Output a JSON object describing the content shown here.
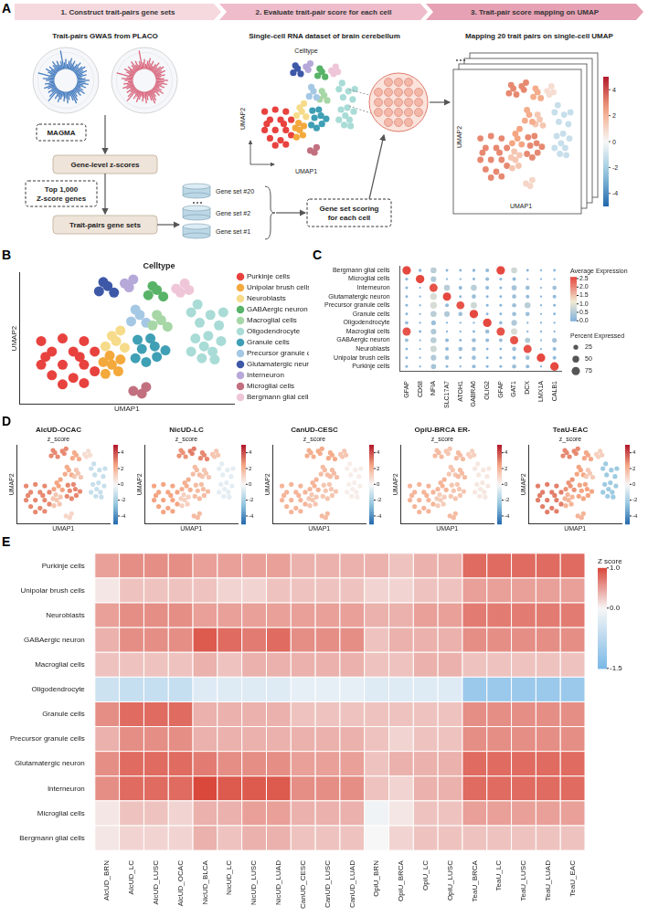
{
  "diagram": {
    "panel_letter": "A",
    "steps": [
      "1. Construct trait-pairs gene sets",
      "2. Evaluate trait-pair score for each cell",
      "3. Trait-pair score mapping on UMAP"
    ],
    "gwas_title": "Trait-pairs GWAS from PLACO",
    "method": "MAGMA",
    "gene_scores": "Gene-level z-scores",
    "gene_filter": "Top 1,000 Z-score genes",
    "gene_sets_title": "Trait-pairs gene sets",
    "gene_sets": [
      "Gene set #20",
      "Gene set #2",
      "Gene set #1"
    ],
    "dataset_title": "Single-cell RNA dataset of brain cerebellum",
    "umap_title": "Celltype",
    "scoring": "Gene set scoring for each cell",
    "mapping_title": "Mapping 20 trait pairs on single-cell UMAP",
    "x_label": "UMAP1",
    "y_label": "UMAP2",
    "colorbar": {
      "lim": [
        -5,
        5
      ],
      "ticks": [
        4,
        2,
        0,
        -2,
        -4
      ]
    }
  },
  "chart_data": [
    {
      "panel_letter": "B",
      "type": "scatter",
      "title": "Celltype",
      "x_label": "UMAP1",
      "y_label": "UMAP2",
      "xlim": [
        0,
        10
      ],
      "ylim": [
        0,
        10
      ],
      "tick_labels": false,
      "grid": false,
      "legend": "right",
      "series": [
        {
          "name": "Purkinje cells",
          "color": "#e8423f",
          "x": [
            1,
            1.5,
            1.5,
            2,
            2,
            2.5,
            2.5,
            3,
            3,
            3.5,
            3.5,
            1,
            2,
            3,
            1.2,
            2.8
          ],
          "y": [
            3,
            2.2,
            4,
            3,
            5,
            2,
            4,
            3,
            4.8,
            2.5,
            4,
            4.8,
            1.5,
            1.6,
            3.6,
            3.6
          ]
        },
        {
          "name": "Unipolar brush cells",
          "color": "#f4a93c",
          "x": [
            4,
            4.3,
            4.6,
            4.2,
            4.7,
            3.9
          ],
          "y": [
            2.3,
            3,
            2.5,
            3.7,
            3.4,
            3.2
          ]
        },
        {
          "name": "Neuroblasts",
          "color": "#f6dc8a",
          "x": [
            4,
            4.5,
            4.9,
            4.3,
            4.7
          ],
          "y": [
            4.4,
            4.8,
            4.3,
            5.2,
            5.6
          ]
        },
        {
          "name": "GABAergic neuron",
          "color": "#58b368",
          "x": [
            6,
            6.4,
            6.7,
            6.2
          ],
          "y": [
            8.3,
            8.7,
            8.2,
            9
          ]
        },
        {
          "name": "Macroglial cells",
          "color": "#a7d7a6",
          "x": [
            6.2,
            6.6,
            6.9,
            6.4
          ],
          "y": [
            6,
            6.4,
            5.9,
            6.8
          ]
        },
        {
          "name": "Oligodendrocyte",
          "color": "#a9dcd6",
          "x": [
            8,
            8.5,
            9,
            9.4,
            8.2,
            8.8,
            9.3,
            8.4,
            8.9,
            8,
            9.5,
            8.6,
            9.1,
            8.3
          ],
          "y": [
            4,
            3.5,
            4,
            4.8,
            5,
            5.2,
            6,
            6.2,
            6.8,
            7,
            7,
            4.4,
            3.4,
            7.6
          ]
        },
        {
          "name": "Granule cells",
          "color": "#3f9fb5",
          "x": [
            5.4,
            5.9,
            6.4,
            5.7,
            6.3,
            6.8,
            5.5,
            6.1
          ],
          "y": [
            3.5,
            3.2,
            3.6,
            4.2,
            4.4,
            4.1,
            4.9,
            5
          ]
        },
        {
          "name": "Precursor granule cells",
          "color": "#a5c8e4",
          "x": [
            5.2,
            5.6,
            5.9,
            5.4
          ],
          "y": [
            6.3,
            6.8,
            6.2,
            7.2
          ]
        },
        {
          "name": "Glutamatergic neuron",
          "color": "#3e58a8",
          "x": [
            3.7,
            4.1,
            4.4,
            3.9
          ],
          "y": [
            8.6,
            9,
            8.5,
            9.3
          ]
        },
        {
          "name": "Interneuron",
          "color": "#b6a8d8",
          "x": [
            4.9,
            5.3,
            5.1
          ],
          "y": [
            9.2,
            9.5,
            8.9
          ]
        },
        {
          "name": "Microglial cells",
          "color": "#c2707f",
          "x": [
            5.3,
            5.7,
            5.9
          ],
          "y": [
            1,
            0.8,
            1.3
          ]
        },
        {
          "name": "Bergmann glial cells",
          "color": "#efc6d8",
          "x": [
            7.3,
            7.7,
            7.5,
            7.9
          ],
          "y": [
            8.8,
            9.2,
            8.5,
            8.7
          ]
        }
      ]
    },
    {
      "panel_letter": "C",
      "type": "dot",
      "x_categories": [
        "GFAP",
        "CD68",
        "NFIA",
        "SLC17A7",
        "ATOH1",
        "GABRA6",
        "OLIG2",
        "GFAP",
        "GAT1",
        "DCX",
        "LMX1A",
        "CALB1"
      ],
      "y_categories": [
        "Bergmann glial cells",
        "Microglial cells",
        "Interneuron",
        "Glutamatergic neuron",
        "Precursor granule cells",
        "Granule cells",
        "Oligodendrocyte",
        "Macroglial cells",
        "GABAergic neuron",
        "Neuroblasts",
        "Unipolar brush cells",
        "Purkinje cells"
      ],
      "average_expression": [
        [
          2.6,
          0.1,
          0.6,
          0.1,
          0.1,
          0.1,
          0.2,
          2.6,
          0.8,
          0.1,
          0.1,
          0.1
        ],
        [
          0.2,
          2.6,
          0.5,
          0.1,
          0.1,
          0.1,
          0.2,
          0.2,
          0.2,
          0.1,
          0.1,
          0.1
        ],
        [
          0.2,
          0.1,
          2.5,
          0.6,
          0.2,
          0.6,
          0.2,
          0.2,
          0.4,
          0.3,
          0.1,
          0.3
        ],
        [
          0.1,
          0.1,
          0.9,
          2.6,
          0.1,
          0.3,
          0.1,
          0.1,
          0.3,
          0.2,
          0.1,
          0.2
        ],
        [
          0.1,
          0.1,
          0.9,
          0.2,
          2.5,
          0.8,
          0.1,
          0.1,
          0.3,
          0.6,
          0.1,
          0.1
        ],
        [
          0.1,
          0.1,
          0.6,
          0.5,
          0.3,
          2.6,
          0.1,
          0.1,
          0.3,
          0.3,
          0.1,
          0.1
        ],
        [
          0.2,
          0.1,
          0.3,
          0.1,
          0.1,
          0.1,
          2.6,
          0.2,
          0.5,
          0.1,
          0.1,
          0.1
        ],
        [
          2.5,
          0.1,
          0.5,
          0.1,
          0.1,
          0.1,
          0.3,
          2.5,
          0.9,
          0.1,
          0.1,
          0.1
        ],
        [
          0.3,
          0.1,
          0.6,
          0.2,
          0.1,
          0.3,
          0.2,
          0.3,
          2.5,
          0.5,
          0.1,
          0.4
        ],
        [
          0.1,
          0.1,
          0.8,
          0.2,
          0.3,
          0.3,
          0.1,
          0.1,
          0.3,
          2.5,
          0.1,
          0.2
        ],
        [
          0.1,
          0.1,
          0.5,
          0.3,
          0.1,
          0.3,
          0.1,
          0.1,
          0.2,
          0.3,
          2.6,
          0.2
        ],
        [
          0.1,
          0.1,
          0.4,
          0.1,
          0.1,
          0.2,
          0.1,
          0.1,
          0.3,
          0.2,
          0.1,
          2.6
        ]
      ],
      "percent_expressed": [
        [
          80,
          10,
          40,
          8,
          8,
          10,
          15,
          80,
          40,
          8,
          5,
          8
        ],
        [
          10,
          80,
          35,
          5,
          5,
          8,
          15,
          10,
          15,
          5,
          5,
          5
        ],
        [
          10,
          5,
          75,
          40,
          15,
          40,
          15,
          10,
          30,
          20,
          5,
          20
        ],
        [
          8,
          5,
          50,
          75,
          8,
          20,
          8,
          8,
          20,
          15,
          5,
          15
        ],
        [
          8,
          5,
          50,
          15,
          70,
          45,
          8,
          8,
          20,
          40,
          5,
          8
        ],
        [
          8,
          5,
          40,
          35,
          20,
          80,
          8,
          8,
          20,
          20,
          5,
          8
        ],
        [
          12,
          5,
          25,
          5,
          5,
          5,
          80,
          12,
          35,
          5,
          5,
          5
        ],
        [
          75,
          8,
          35,
          5,
          5,
          8,
          20,
          75,
          45,
          5,
          5,
          5
        ],
        [
          15,
          5,
          40,
          15,
          8,
          20,
          15,
          15,
          75,
          30,
          5,
          25
        ],
        [
          8,
          5,
          45,
          15,
          20,
          20,
          8,
          8,
          20,
          75,
          5,
          15
        ],
        [
          8,
          5,
          35,
          20,
          8,
          20,
          8,
          8,
          15,
          20,
          80,
          15
        ],
        [
          8,
          5,
          30,
          8,
          5,
          15,
          8,
          8,
          20,
          15,
          5,
          80
        ]
      ],
      "color_title": "Average Expression",
      "colorbar": {
        "lim": [
          0,
          2.6
        ],
        "ticks": [
          {
            "value": 0,
            "label": "0.0"
          },
          {
            "value": 0.5,
            "label": "0.5"
          },
          {
            "value": 1,
            "label": "1.0"
          },
          {
            "value": 1.5,
            "label": "1.5"
          },
          {
            "value": 2,
            "label": "2.0"
          },
          {
            "value": 2.5,
            "label": "2.5"
          }
        ]
      },
      "size_title": "Percent Expressed",
      "size_ticks": [
        25,
        50,
        75
      ]
    },
    {
      "panel_letter": "D",
      "type": "scatter",
      "title": "AlcUD-OCAC",
      "subtitle": "z_score",
      "x_label": "UMAP1",
      "y_label": "UMAP2",
      "xlim": [
        0,
        10
      ],
      "ylim": [
        0,
        10
      ],
      "tick_labels": false,
      "z_scores": [
        3,
        1.5,
        2.5,
        2.3,
        1.5,
        -1.2,
        3,
        2.3,
        3,
        3,
        1,
        0.8
      ],
      "colorbar": {
        "lim": [
          -5,
          5
        ],
        "ticks": [
          4,
          2,
          0,
          -2,
          -4
        ]
      }
    },
    {
      "type": "scatter",
      "title": "NicUD-LC",
      "subtitle": "z_score",
      "x_label": "UMAP1",
      "y_label": "UMAP2",
      "xlim": [
        0,
        10
      ],
      "ylim": [
        0,
        10
      ],
      "tick_labels": false,
      "z_scores": [
        2.5,
        1.2,
        2.2,
        3,
        1.5,
        -0.5,
        1.8,
        1.8,
        2.8,
        3.2,
        1.8,
        1.5
      ],
      "colorbar": {
        "lim": [
          -5,
          5
        ],
        "ticks": [
          4,
          2,
          0,
          -2,
          -4
        ]
      }
    },
    {
      "type": "scatter",
      "title": "CanUD-CESC",
      "subtitle": "z_score",
      "x_label": "UMAP1",
      "y_label": "UMAP2",
      "xlim": [
        0,
        10
      ],
      "ylim": [
        0,
        10
      ],
      "tick_labels": false,
      "z_scores": [
        2,
        1.5,
        2,
        2.3,
        1.8,
        0.3,
        1.5,
        1.8,
        2.2,
        2.3,
        1.8,
        1.5
      ],
      "colorbar": {
        "lim": [
          -5,
          5
        ],
        "ticks": [
          4,
          2,
          0,
          -2,
          -4
        ]
      }
    },
    {
      "type": "scatter",
      "title": "OpiU-BRCA ER-",
      "subtitle": "z_score",
      "x_label": "UMAP1",
      "y_label": "UMAP2",
      "xlim": [
        0,
        10
      ],
      "ylim": [
        0,
        10
      ],
      "tick_labels": false,
      "z_scores": [
        2,
        1.3,
        2,
        1.8,
        1.8,
        0.5,
        1.5,
        1.5,
        1.8,
        1.5,
        1.8,
        1.2
      ],
      "colorbar": {
        "lim": [
          -5,
          5
        ],
        "ticks": [
          4,
          2,
          0,
          -2,
          -4
        ]
      }
    },
    {
      "type": "scatter",
      "title": "TeaU-EAC",
      "subtitle": "z_score",
      "x_label": "UMAP1",
      "y_label": "UMAP2",
      "xlim": [
        0,
        10
      ],
      "ylim": [
        0,
        10
      ],
      "tick_labels": false,
      "z_scores": [
        3.2,
        2,
        2.8,
        2.4,
        1.4,
        -2.2,
        2.5,
        2.5,
        3,
        3,
        2,
        1.2
      ],
      "colorbar": {
        "lim": [
          -5,
          5
        ],
        "ticks": [
          4,
          2,
          0,
          -2,
          -4
        ]
      }
    },
    {
      "panel_letter": "E",
      "type": "heatmap",
      "x_categories": [
        "AlcUD_BRN",
        "AlcUD_LC",
        "AlcUD_LUSC",
        "AlcUD_OCAC",
        "NicUD_BLCA",
        "NicUD_LC",
        "NicUD_LUSC",
        "NicUD_LUAD",
        "CanUD_CESC",
        "CanUD_LUSC",
        "CanUD_LUAD",
        "OpiU_BRN",
        "OpiU_BRCA",
        "OpiU_LC",
        "OpiU_LUSC",
        "TeaU_BRCA",
        "TeaU_LC",
        "TeaU_LUSC",
        "TeaU_LUAD",
        "TeaU_EAC"
      ],
      "y_categories": [
        "Purkinje cells",
        "Unipolar brush cells",
        "Neuroblasts",
        "GABAergic neuron",
        "Macroglial cells",
        "Oligodendrocyte",
        "Granule cells",
        "Precursor granule cells",
        "Glutamatergic neuron",
        "Interneuron",
        "Microglial cells",
        "Bergmann glial cells"
      ],
      "values": [
        [
          0.5,
          0.6,
          0.6,
          0.6,
          0.5,
          0.5,
          0.5,
          0.5,
          0.4,
          0.4,
          0.4,
          0.4,
          0.3,
          0.4,
          0.4,
          0.8,
          0.8,
          0.8,
          0.8,
          0.8
        ],
        [
          0.1,
          0.3,
          0.3,
          0.3,
          0.3,
          0.2,
          0.2,
          0.3,
          0.3,
          0.3,
          0.3,
          0.2,
          0.2,
          0.3,
          0.3,
          0.5,
          0.5,
          0.5,
          0.5,
          0.5
        ],
        [
          0.5,
          0.6,
          0.6,
          0.6,
          0.5,
          0.5,
          0.5,
          0.5,
          0.5,
          0.5,
          0.5,
          0.4,
          0.4,
          0.5,
          0.5,
          0.7,
          0.7,
          0.7,
          0.7,
          0.7
        ],
        [
          0.4,
          0.6,
          0.6,
          0.6,
          0.9,
          0.8,
          0.7,
          0.8,
          0.6,
          0.6,
          0.6,
          0.3,
          0.4,
          0.4,
          0.4,
          0.6,
          0.6,
          0.6,
          0.6,
          0.6
        ],
        [
          0.3,
          0.3,
          0.3,
          0.3,
          0.4,
          0.3,
          0.4,
          0.4,
          0.4,
          0.4,
          0.4,
          0.3,
          0.3,
          0.4,
          0.4,
          0.3,
          0.3,
          0.3,
          0.3,
          0.3
        ],
        [
          -0.5,
          -0.6,
          -0.6,
          -0.6,
          -0.3,
          -0.3,
          -0.3,
          -0.3,
          -0.2,
          -0.2,
          -0.2,
          -0.3,
          -0.3,
          -0.3,
          -0.3,
          -1.1,
          -1.1,
          -1.1,
          -1.1,
          -1.1
        ],
        [
          0.6,
          0.8,
          0.8,
          0.8,
          0.4,
          0.4,
          0.4,
          0.4,
          0.3,
          0.3,
          0.3,
          0.3,
          0.3,
          0.3,
          0.3,
          0.6,
          0.6,
          0.6,
          0.6,
          0.6
        ],
        [
          0.4,
          0.6,
          0.6,
          0.6,
          0.4,
          0.4,
          0.4,
          0.4,
          0.4,
          0.4,
          0.4,
          0.3,
          0.2,
          0.3,
          0.3,
          0.6,
          0.6,
          0.6,
          0.6,
          0.6
        ],
        [
          0.6,
          0.8,
          0.8,
          0.8,
          0.7,
          0.6,
          0.6,
          0.6,
          0.5,
          0.5,
          0.5,
          0.3,
          0.4,
          0.4,
          0.4,
          0.8,
          0.8,
          0.8,
          0.8,
          0.8
        ],
        [
          0.6,
          0.8,
          0.8,
          0.8,
          1.0,
          0.9,
          0.9,
          0.9,
          0.6,
          0.6,
          0.6,
          0.3,
          0.2,
          0.4,
          0.4,
          0.8,
          0.8,
          0.8,
          0.8,
          0.8
        ],
        [
          0.1,
          0.3,
          0.3,
          0.2,
          0.4,
          0.4,
          0.5,
          0.5,
          0.4,
          0.4,
          0.4,
          -0.1,
          0.1,
          0.3,
          0.3,
          0.5,
          0.5,
          0.5,
          0.5,
          0.5
        ],
        [
          0.1,
          0.2,
          0.2,
          0.2,
          0.4,
          0.3,
          0.4,
          0.4,
          0.3,
          0.3,
          0.3,
          0.0,
          0.2,
          0.3,
          0.3,
          0.3,
          0.3,
          0.3,
          0.3,
          0.3
        ]
      ],
      "colorbar_title": "Z score",
      "colorbar": {
        "lim": [
          -1.5,
          1
        ],
        "ticks": [
          {
            "value": 1,
            "label": "1.0"
          },
          {
            "value": 0,
            "label": "0.0"
          },
          {
            "value": -1.5,
            "label": "-1.5"
          }
        ]
      }
    }
  ]
}
